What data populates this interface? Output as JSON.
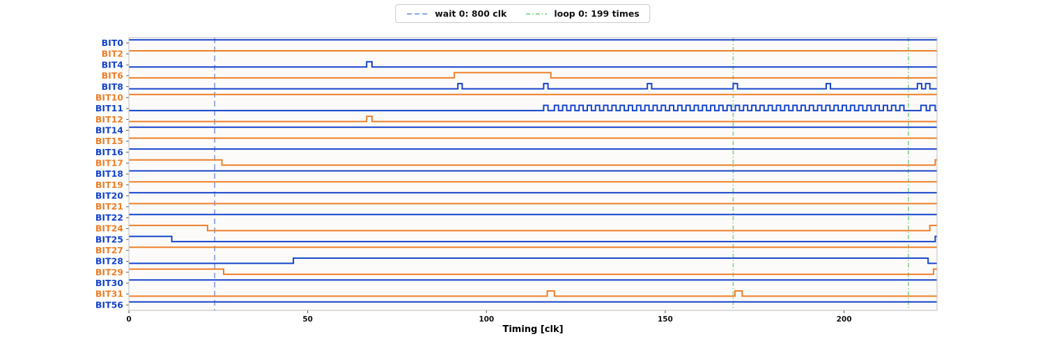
{
  "legend": {
    "items": [
      {
        "label": "wait 0: 800 clk",
        "style": "dashed",
        "color": "#8da4dd"
      },
      {
        "label": "loop 0: 199 times",
        "style": "dashdot",
        "color": "#8fd695"
      }
    ]
  },
  "chart_data": {
    "type": "line",
    "subtype": "digital-timing-waveform",
    "title": "",
    "xlabel": "Timing [clk]",
    "ylabel": "",
    "x_range": [
      0,
      226
    ],
    "xticks": [
      0,
      50,
      100,
      150,
      200
    ],
    "grid": false,
    "legend_position": "top-center",
    "palette": {
      "blue": "#1443cc",
      "orange": "#ee7e28"
    },
    "markers": [
      {
        "name": "wait-0",
        "label": "wait 0: 800 clk",
        "style": "dashed",
        "color": "#8da4dd",
        "times": [
          24
        ]
      },
      {
        "name": "loop-0",
        "label": "loop 0: 199 times",
        "style": "dashdot",
        "color": "#8fd695",
        "times": [
          169,
          218
        ]
      }
    ],
    "signals": [
      {
        "name": "BIT0",
        "color": "blue",
        "initial": 1,
        "edges": []
      },
      {
        "name": "BIT2",
        "color": "orange",
        "initial": 1,
        "edges": []
      },
      {
        "name": "BIT4",
        "color": "blue",
        "initial": 0,
        "edges": [
          66.5,
          68
        ]
      },
      {
        "name": "BIT6",
        "color": "orange",
        "initial": 0,
        "edges": [
          91,
          118
        ]
      },
      {
        "name": "BIT8",
        "color": "blue",
        "initial": 0,
        "edges": [
          92,
          93.2,
          116,
          117.2,
          145,
          146.2,
          169,
          170.2,
          195,
          196.2,
          220.5,
          221.7,
          222.8,
          224
        ]
      },
      {
        "name": "BIT10",
        "color": "orange",
        "initial": 1,
        "edges": []
      },
      {
        "name": "BIT11",
        "color": "blue",
        "initial": 0,
        "edges": [
          116,
          117.2,
          221.5,
          223,
          224,
          225.5
        ],
        "toggle": {
          "start": 119,
          "end": 217.5,
          "half_period": 1.15
        }
      },
      {
        "name": "BIT12",
        "color": "orange",
        "initial": 0,
        "edges": [
          66.5,
          68
        ]
      },
      {
        "name": "BIT14",
        "color": "blue",
        "initial": 1,
        "edges": []
      },
      {
        "name": "BIT15",
        "color": "orange",
        "initial": 1,
        "edges": []
      },
      {
        "name": "BIT16",
        "color": "blue",
        "initial": 1,
        "edges": []
      },
      {
        "name": "BIT17",
        "color": "orange",
        "initial": 1,
        "edges": [
          26,
          225.5
        ]
      },
      {
        "name": "BIT18",
        "color": "blue",
        "initial": 1,
        "edges": []
      },
      {
        "name": "BIT19",
        "color": "orange",
        "initial": 1,
        "edges": []
      },
      {
        "name": "BIT20",
        "color": "blue",
        "initial": 1,
        "edges": []
      },
      {
        "name": "BIT21",
        "color": "orange",
        "initial": 1,
        "edges": []
      },
      {
        "name": "BIT22",
        "color": "blue",
        "initial": 1,
        "edges": []
      },
      {
        "name": "BIT24",
        "color": "orange",
        "initial": 1,
        "edges": [
          22,
          224
        ]
      },
      {
        "name": "BIT25",
        "color": "blue",
        "initial": 1,
        "edges": [
          12,
          225.5
        ]
      },
      {
        "name": "BIT27",
        "color": "orange",
        "initial": 1,
        "edges": []
      },
      {
        "name": "BIT28",
        "color": "blue",
        "initial": 0,
        "edges": [
          46,
          223.5
        ]
      },
      {
        "name": "BIT29",
        "color": "orange",
        "initial": 1,
        "edges": [
          26.5,
          225
        ]
      },
      {
        "name": "BIT30",
        "color": "blue",
        "initial": 1,
        "edges": []
      },
      {
        "name": "BIT31",
        "color": "orange",
        "initial": 0,
        "edges": [
          117,
          119,
          169.5,
          171.5
        ]
      },
      {
        "name": "BIT56",
        "color": "blue",
        "initial": 1,
        "edges": []
      }
    ]
  }
}
